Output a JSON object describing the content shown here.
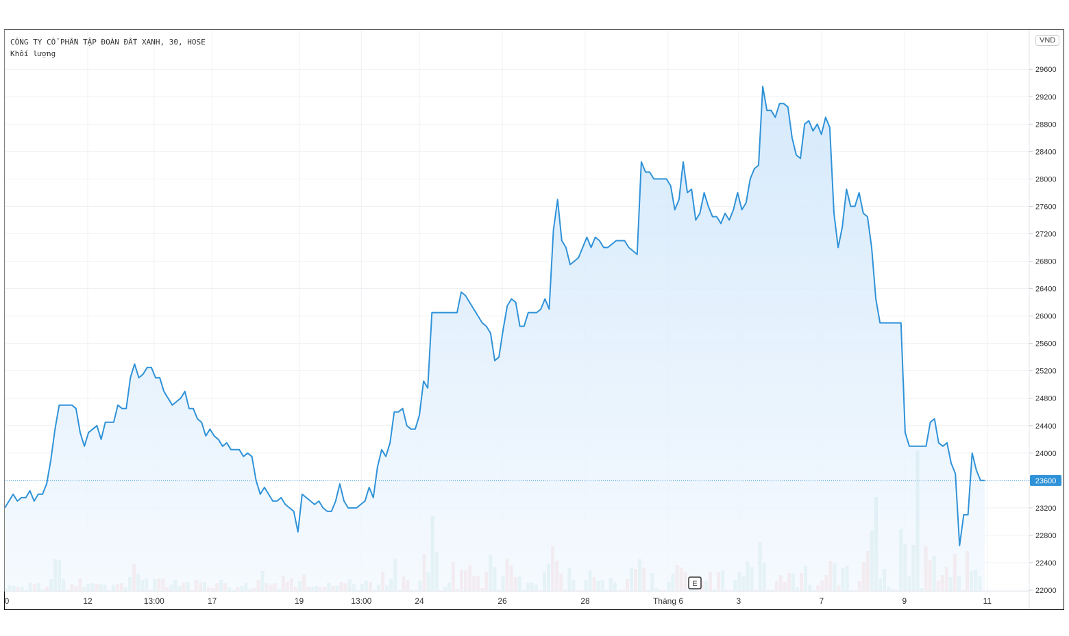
{
  "header": {
    "symbol_line": "CÔNG TY CỔ PHẦN TẬP ĐOÀN ĐẤT XANH, 30, HOSE",
    "volume_label": "Khối lượng",
    "currency": "VND"
  },
  "event_marker": "E",
  "colors": {
    "line": "#2f92d8",
    "area_top": "#cfe6fb",
    "area_bottom": "#f4f9fe",
    "volume_up": "#94cfc9",
    "volume_down": "#efa6a5",
    "last_price_bg": "#2f92d8",
    "grid": "#eef0f3"
  },
  "chart_data": {
    "type": "area",
    "price_axis": {
      "ticks": [
        22000,
        22400,
        22800,
        23200,
        23600,
        24000,
        24400,
        24800,
        25200,
        25600,
        26000,
        26400,
        26800,
        27200,
        27600,
        28000,
        28400,
        28800,
        29200,
        29600
      ],
      "range": [
        22000,
        29960
      ],
      "position": "right"
    },
    "time_axis": {
      "labels": [
        {
          "text": "0",
          "bar": 0
        },
        {
          "text": "12",
          "bar": 20
        },
        {
          "text": "13:00",
          "bar": 36
        },
        {
          "text": "17",
          "bar": 50
        },
        {
          "text": "19",
          "bar": 71
        },
        {
          "text": "13:00",
          "bar": 86
        },
        {
          "text": "24",
          "bar": 100
        },
        {
          "text": "26",
          "bar": 120
        },
        {
          "text": "28",
          "bar": 140
        },
        {
          "text": "Tháng 6",
          "bar": 160
        },
        {
          "text": "3",
          "bar": 177
        },
        {
          "text": "7",
          "bar": 197
        },
        {
          "text": "9",
          "bar": 217
        },
        {
          "text": "11",
          "bar": 237
        }
      ]
    },
    "last_price": 23600,
    "grid": true,
    "price_series": [
      [
        0,
        23200
      ],
      [
        2,
        23400
      ],
      [
        3,
        23300
      ],
      [
        4,
        23350
      ],
      [
        5,
        23350
      ],
      [
        6,
        23450
      ],
      [
        7,
        23300
      ],
      [
        8,
        23400
      ],
      [
        9,
        23400
      ],
      [
        10,
        23550
      ],
      [
        11,
        23900
      ],
      [
        12,
        24350
      ],
      [
        13,
        24700
      ],
      [
        16,
        24700
      ],
      [
        17,
        24650
      ],
      [
        18,
        24300
      ],
      [
        19,
        24100
      ],
      [
        20,
        24300
      ],
      [
        22,
        24400
      ],
      [
        23,
        24200
      ],
      [
        24,
        24450
      ],
      [
        26,
        24450
      ],
      [
        27,
        24700
      ],
      [
        28,
        24650
      ],
      [
        29,
        24650
      ],
      [
        30,
        25100
      ],
      [
        31,
        25300
      ],
      [
        32,
        25100
      ],
      [
        33,
        25150
      ],
      [
        34,
        25250
      ],
      [
        35,
        25250
      ],
      [
        36,
        25100
      ],
      [
        37,
        25100
      ],
      [
        38,
        24900
      ],
      [
        40,
        24700
      ],
      [
        41,
        24750
      ],
      [
        42,
        24800
      ],
      [
        43,
        24900
      ],
      [
        44,
        24650
      ],
      [
        45,
        24650
      ],
      [
        46,
        24500
      ],
      [
        47,
        24450
      ],
      [
        48,
        24250
      ],
      [
        49,
        24350
      ],
      [
        50,
        24250
      ],
      [
        51,
        24200
      ],
      [
        52,
        24100
      ],
      [
        53,
        24150
      ],
      [
        54,
        24050
      ],
      [
        56,
        24050
      ],
      [
        57,
        23950
      ],
      [
        58,
        24000
      ],
      [
        59,
        23950
      ],
      [
        60,
        23600
      ],
      [
        61,
        23400
      ],
      [
        62,
        23500
      ],
      [
        63,
        23400
      ],
      [
        64,
        23300
      ],
      [
        65,
        23300
      ],
      [
        66,
        23350
      ],
      [
        67,
        23250
      ],
      [
        69,
        23150
      ],
      [
        70,
        22850
      ],
      [
        71,
        23400
      ],
      [
        72,
        23350
      ],
      [
        74,
        23250
      ],
      [
        75,
        23300
      ],
      [
        76,
        23200
      ],
      [
        77,
        23150
      ],
      [
        78,
        23150
      ],
      [
        79,
        23300
      ],
      [
        80,
        23550
      ],
      [
        81,
        23300
      ],
      [
        82,
        23200
      ],
      [
        84,
        23200
      ],
      [
        85,
        23250
      ],
      [
        86,
        23300
      ],
      [
        87,
        23500
      ],
      [
        88,
        23350
      ],
      [
        89,
        23800
      ],
      [
        90,
        24050
      ],
      [
        91,
        23950
      ],
      [
        92,
        24150
      ],
      [
        93,
        24600
      ],
      [
        94,
        24600
      ],
      [
        95,
        24650
      ],
      [
        96,
        24400
      ],
      [
        97,
        24350
      ],
      [
        98,
        24350
      ],
      [
        99,
        24550
      ],
      [
        100,
        25050
      ],
      [
        101,
        24950
      ],
      [
        102,
        26050
      ],
      [
        108,
        26050
      ],
      [
        109,
        26350
      ],
      [
        110,
        26300
      ],
      [
        114,
        25900
      ],
      [
        115,
        25850
      ],
      [
        116,
        25750
      ],
      [
        117,
        25350
      ],
      [
        118,
        25400
      ],
      [
        119,
        25800
      ],
      [
        120,
        26150
      ],
      [
        121,
        26250
      ],
      [
        122,
        26200
      ],
      [
        123,
        25850
      ],
      [
        124,
        25850
      ],
      [
        125,
        26050
      ],
      [
        127,
        26050
      ],
      [
        128,
        26100
      ],
      [
        129,
        26250
      ],
      [
        130,
        26100
      ],
      [
        131,
        27250
      ],
      [
        132,
        27700
      ],
      [
        133,
        27100
      ],
      [
        134,
        27000
      ],
      [
        135,
        26750
      ],
      [
        137,
        26850
      ],
      [
        138,
        27000
      ],
      [
        139,
        27150
      ],
      [
        140,
        27000
      ],
      [
        141,
        27150
      ],
      [
        142,
        27100
      ],
      [
        143,
        27000
      ],
      [
        144,
        27000
      ],
      [
        145,
        27050
      ],
      [
        146,
        27100
      ],
      [
        148,
        27100
      ],
      [
        149,
        27000
      ],
      [
        151,
        26900
      ],
      [
        152,
        28250
      ],
      [
        153,
        28100
      ],
      [
        154,
        28100
      ],
      [
        155,
        28000
      ],
      [
        158,
        28000
      ],
      [
        159,
        27900
      ],
      [
        160,
        27550
      ],
      [
        161,
        27700
      ],
      [
        162,
        28250
      ],
      [
        163,
        27800
      ],
      [
        164,
        27850
      ],
      [
        165,
        27400
      ],
      [
        166,
        27500
      ],
      [
        167,
        27800
      ],
      [
        168,
        27600
      ],
      [
        169,
        27450
      ],
      [
        170,
        27450
      ],
      [
        171,
        27350
      ],
      [
        172,
        27500
      ],
      [
        173,
        27400
      ],
      [
        174,
        27550
      ],
      [
        175,
        27800
      ],
      [
        176,
        27550
      ],
      [
        177,
        27650
      ],
      [
        178,
        28000
      ],
      [
        179,
        28150
      ],
      [
        180,
        28200
      ],
      [
        181,
        29350
      ],
      [
        182,
        29000
      ],
      [
        183,
        29000
      ],
      [
        184,
        28900
      ],
      [
        185,
        29100
      ],
      [
        186,
        29100
      ],
      [
        187,
        29050
      ],
      [
        188,
        28600
      ],
      [
        189,
        28350
      ],
      [
        190,
        28300
      ],
      [
        191,
        28800
      ],
      [
        192,
        28850
      ],
      [
        193,
        28700
      ],
      [
        194,
        28800
      ],
      [
        195,
        28650
      ],
      [
        196,
        28900
      ],
      [
        197,
        28750
      ],
      [
        198,
        27500
      ],
      [
        199,
        27000
      ],
      [
        200,
        27300
      ],
      [
        201,
        27850
      ],
      [
        202,
        27600
      ],
      [
        203,
        27600
      ],
      [
        204,
        27800
      ],
      [
        205,
        27500
      ],
      [
        206,
        27450
      ],
      [
        207,
        27000
      ],
      [
        208,
        26250
      ],
      [
        209,
        25900
      ],
      [
        214,
        25900
      ],
      [
        215,
        24300
      ],
      [
        216,
        24100
      ],
      [
        220,
        24100
      ],
      [
        221,
        24450
      ],
      [
        222,
        24500
      ],
      [
        223,
        24150
      ],
      [
        224,
        24100
      ],
      [
        225,
        24150
      ],
      [
        226,
        23850
      ],
      [
        227,
        23700
      ],
      [
        228,
        22650
      ],
      [
        229,
        23100
      ],
      [
        230,
        23100
      ],
      [
        231,
        24000
      ],
      [
        232,
        23750
      ],
      [
        233,
        23600
      ],
      [
        234,
        23600
      ]
    ],
    "volume_relative": [
      4,
      8,
      7,
      5,
      6,
      1,
      12,
      10,
      11,
      2,
      6,
      17,
      46,
      45,
      17,
      1,
      10,
      7,
      18,
      5,
      10,
      11,
      10,
      10,
      9,
      1,
      9,
      10,
      11,
      5,
      20,
      39,
      25,
      16,
      18,
      1,
      17,
      18,
      18,
      5,
      9,
      16,
      7,
      12,
      13,
      1,
      16,
      12,
      13,
      5,
      4,
      11,
      16,
      11,
      5,
      1,
      5,
      7,
      12,
      3,
      4,
      16,
      29,
      11,
      9,
      11,
      3,
      22,
      13,
      18,
      6,
      14,
      24,
      6,
      6,
      7,
      5,
      6,
      12,
      7,
      7,
      13,
      11,
      17,
      10,
      1,
      10,
      15,
      13,
      1,
      9,
      28,
      8,
      17,
      47,
      1,
      21,
      16,
      1,
      1,
      15,
      54,
      27,
      109,
      56,
      1,
      6,
      12,
      42,
      3,
      31,
      30,
      37,
      22,
      21,
      4,
      28,
      52,
      35,
      1,
      22,
      47,
      37,
      20,
      21,
      1,
      12,
      12,
      9,
      1,
      28,
      39,
      66,
      44,
      25,
      2,
      33,
      16,
      1,
      1,
      16,
      30,
      20,
      15,
      16,
      1,
      19,
      12,
      1,
      1,
      17,
      34,
      32,
      46,
      34,
      1,
      26,
      4,
      1,
      1,
      13,
      25,
      38,
      34,
      28,
      2,
      2,
      1,
      14,
      14,
      28,
      2,
      27,
      30,
      2,
      1,
      16,
      27,
      21,
      43,
      35,
      2,
      71,
      41,
      2,
      1,
      14,
      23,
      13,
      26,
      25,
      5,
      26,
      36,
      9,
      1,
      8,
      15,
      23,
      44,
      40,
      8,
      33,
      36,
      1,
      1,
      14,
      42,
      58,
      88,
      137,
      18,
      32,
      6,
      3,
      1,
      90,
      68,
      22,
      67,
      205,
      4,
      65,
      45,
      51,
      15,
      23,
      35,
      20,
      54,
      21,
      1,
      58,
      29,
      31,
      21
    ],
    "volume_direction": "gggrgggrggrggggrrrrgggrggggrrggrgggrgrrrgggrgrrrgrrrgrggrgg grrgrrrgrrrrgrrggrrgrgrrgggggrggrggggrrgggrggggggrrrrrrrrrgg ggrrrgggggrggrrrgggrrggrgggggrrrgrgrgggrrggrrrggrrgrgrgrrggg ggrggggrrrrggrgggrrrrgrgggrrrrggggggrggggggrrgrrrgrgrrg"
  }
}
